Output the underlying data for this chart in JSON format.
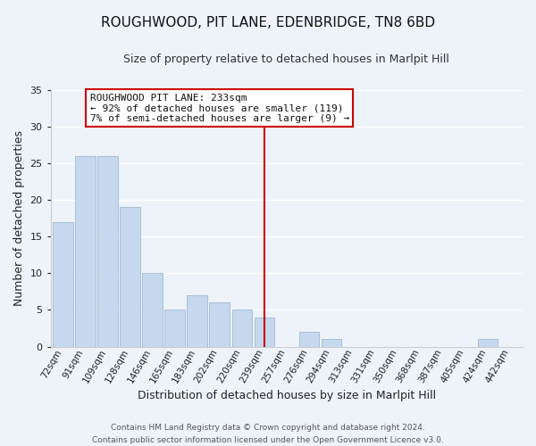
{
  "title": "ROUGHWOOD, PIT LANE, EDENBRIDGE, TN8 6BD",
  "subtitle": "Size of property relative to detached houses in Marlpit Hill",
  "xlabel": "Distribution of detached houses by size in Marlpit Hill",
  "ylabel": "Number of detached properties",
  "bar_labels": [
    "72sqm",
    "91sqm",
    "109sqm",
    "128sqm",
    "146sqm",
    "165sqm",
    "183sqm",
    "202sqm",
    "220sqm",
    "239sqm",
    "257sqm",
    "276sqm",
    "294sqm",
    "313sqm",
    "331sqm",
    "350sqm",
    "368sqm",
    "387sqm",
    "405sqm",
    "424sqm",
    "442sqm"
  ],
  "bar_values": [
    17,
    26,
    26,
    19,
    10,
    5,
    7,
    6,
    5,
    4,
    0,
    2,
    1,
    0,
    0,
    0,
    0,
    0,
    0,
    1,
    0
  ],
  "bar_color": "#c5d8ed",
  "bar_edge_color": "#a0b8d0",
  "reference_line_x_label": "239sqm",
  "reference_line_color": "#cc0000",
  "annotation_title": "ROUGHWOOD PIT LANE: 233sqm",
  "annotation_line1": "← 92% of detached houses are smaller (119)",
  "annotation_line2": "7% of semi-detached houses are larger (9) →",
  "annotation_box_facecolor": "#ffffff",
  "annotation_box_edgecolor": "#cc0000",
  "ylim": [
    0,
    35
  ],
  "yticks": [
    0,
    5,
    10,
    15,
    20,
    25,
    30,
    35
  ],
  "footer_line1": "Contains HM Land Registry data © Crown copyright and database right 2024.",
  "footer_line2": "Contains public sector information licensed under the Open Government Licence v3.0.",
  "background_color": "#eef2f9",
  "grid_color": "#ffffff",
  "title_fontsize": 11,
  "subtitle_fontsize": 9,
  "xlabel_fontsize": 9,
  "ylabel_fontsize": 9,
  "tick_fontsize": 7.5,
  "footer_fontsize": 6.5,
  "annotation_fontsize": 8
}
